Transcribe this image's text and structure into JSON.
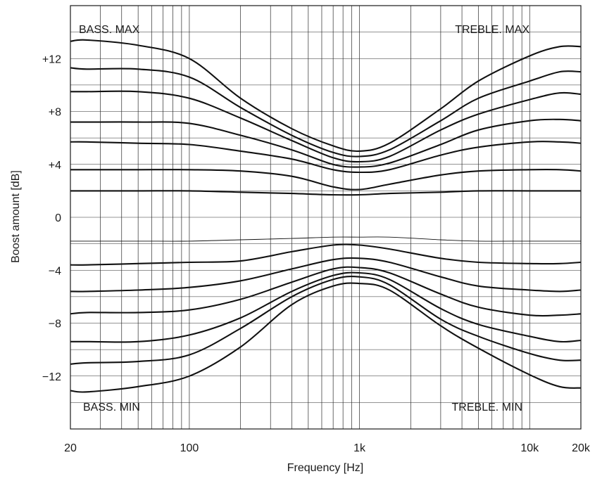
{
  "chart_data": {
    "type": "line",
    "xlabel": "Frequency [Hz]",
    "ylabel": "Boost amount [dB]",
    "x_scale": "log",
    "xlim": [
      20,
      20000
    ],
    "ylim": [
      -16,
      16
    ],
    "grid": true,
    "x_ticks": [
      {
        "value": 20,
        "label": "20"
      },
      {
        "value": 100,
        "label": "100"
      },
      {
        "value": 1000,
        "label": "1k"
      },
      {
        "value": 10000,
        "label": "10k"
      },
      {
        "value": 20000,
        "label": "20k"
      }
    ],
    "y_ticks": [
      {
        "value": 12,
        "label": "+12"
      },
      {
        "value": 8,
        "label": "+8"
      },
      {
        "value": 4,
        "label": "+4"
      },
      {
        "value": 0,
        "label": "0"
      },
      {
        "value": -4,
        "label": "−4"
      },
      {
        "value": -8,
        "label": "−8"
      },
      {
        "value": -12,
        "label": "−12"
      }
    ],
    "annotations": {
      "bass_max": "BASS. MAX",
      "treble_max": "TREBLE. MAX",
      "bass_min": "BASS. MIN",
      "treble_min": "TREBLE. MIN"
    },
    "series": [
      {
        "x": [
          20,
          25,
          50,
          100,
          200,
          400,
          700,
          1000,
          1500,
          3000,
          5000,
          10000,
          15000,
          20000
        ],
        "y": [
          13.3,
          13.4,
          13.0,
          12.0,
          9.0,
          6.7,
          5.4,
          5.0,
          5.6,
          8.2,
          10.3,
          12.2,
          12.9,
          12.9
        ]
      },
      {
        "x": [
          20,
          25,
          50,
          100,
          200,
          400,
          700,
          1000,
          1500,
          3000,
          5000,
          10000,
          15000,
          20000
        ],
        "y": [
          11.3,
          11.2,
          11.2,
          10.6,
          8.3,
          6.2,
          4.9,
          4.6,
          5.1,
          7.3,
          9.0,
          10.3,
          11.0,
          11.0
        ]
      },
      {
        "x": [
          20,
          25,
          50,
          100,
          200,
          400,
          700,
          1000,
          1500,
          3000,
          5000,
          10000,
          15000,
          20000
        ],
        "y": [
          9.5,
          9.5,
          9.5,
          9.0,
          7.5,
          5.8,
          4.5,
          4.2,
          4.6,
          6.6,
          7.8,
          8.9,
          9.4,
          9.3
        ]
      },
      {
        "x": [
          20,
          25,
          50,
          100,
          200,
          400,
          700,
          1000,
          1500,
          3000,
          5000,
          10000,
          15000,
          20000
        ],
        "y": [
          7.2,
          7.2,
          7.2,
          7.1,
          6.2,
          5.1,
          4.0,
          3.8,
          4.1,
          5.5,
          6.6,
          7.3,
          7.4,
          7.3
        ]
      },
      {
        "x": [
          20,
          25,
          50,
          100,
          200,
          400,
          700,
          1000,
          1500,
          3000,
          5000,
          10000,
          15000,
          20000
        ],
        "y": [
          5.7,
          5.7,
          5.6,
          5.5,
          5.0,
          4.4,
          3.6,
          3.4,
          3.6,
          4.7,
          5.3,
          5.7,
          5.7,
          5.6
        ]
      },
      {
        "x": [
          20,
          25,
          50,
          100,
          200,
          400,
          700,
          1000,
          1500,
          3000,
          5000,
          10000,
          15000,
          20000
        ],
        "y": [
          3.6,
          3.6,
          3.6,
          3.6,
          3.5,
          3.1,
          2.3,
          2.1,
          2.5,
          3.2,
          3.5,
          3.6,
          3.6,
          3.5
        ]
      },
      {
        "x": [
          20,
          50,
          100,
          200,
          400,
          700,
          1000,
          1500,
          3000,
          5000,
          10000,
          20000
        ],
        "y": [
          2.0,
          2.0,
          2.0,
          1.9,
          1.8,
          1.7,
          1.7,
          1.8,
          1.9,
          2.0,
          2.0,
          2.0
        ]
      },
      {
        "x": [
          20,
          50,
          100,
          200,
          400,
          700,
          1000,
          1500,
          3000,
          5000,
          10000,
          20000
        ],
        "y": [
          -1.8,
          -1.8,
          -1.8,
          -1.7,
          -1.6,
          -1.5,
          -1.5,
          -1.5,
          -1.7,
          -1.8,
          -1.8,
          -1.8
        ]
      },
      {
        "x": [
          20,
          25,
          50,
          100,
          200,
          400,
          700,
          1000,
          1500,
          3000,
          5000,
          10000,
          15000,
          20000
        ],
        "y": [
          -3.6,
          -3.6,
          -3.5,
          -3.4,
          -3.3,
          -2.6,
          -2.1,
          -2.1,
          -2.4,
          -3.1,
          -3.4,
          -3.5,
          -3.5,
          -3.4
        ]
      },
      {
        "x": [
          20,
          25,
          50,
          100,
          200,
          400,
          700,
          1000,
          1500,
          3000,
          5000,
          10000,
          15000,
          20000
        ],
        "y": [
          -5.6,
          -5.6,
          -5.5,
          -5.3,
          -4.8,
          -3.9,
          -3.2,
          -3.1,
          -3.4,
          -4.5,
          -5.2,
          -5.5,
          -5.6,
          -5.5
        ]
      },
      {
        "x": [
          20,
          25,
          50,
          100,
          200,
          400,
          700,
          1000,
          1500,
          3000,
          5000,
          10000,
          15000,
          20000
        ],
        "y": [
          -7.3,
          -7.2,
          -7.2,
          -7.0,
          -6.2,
          -4.9,
          -3.9,
          -3.8,
          -4.2,
          -5.8,
          -6.8,
          -7.4,
          -7.4,
          -7.3
        ]
      },
      {
        "x": [
          20,
          25,
          50,
          100,
          200,
          400,
          700,
          1000,
          1500,
          3000,
          5000,
          10000,
          15000,
          20000
        ],
        "y": [
          -9.4,
          -9.4,
          -9.4,
          -8.9,
          -7.6,
          -5.6,
          -4.4,
          -4.2,
          -4.7,
          -6.9,
          -8.1,
          -9.0,
          -9.4,
          -9.3
        ]
      },
      {
        "x": [
          20,
          25,
          50,
          100,
          200,
          400,
          700,
          1000,
          1500,
          3000,
          5000,
          10000,
          15000,
          20000
        ],
        "y": [
          -11.1,
          -11.0,
          -10.9,
          -10.4,
          -8.4,
          -6.0,
          -4.7,
          -4.5,
          -5.1,
          -7.7,
          -9.0,
          -10.3,
          -10.8,
          -10.8
        ]
      },
      {
        "x": [
          20,
          25,
          50,
          100,
          200,
          400,
          700,
          1000,
          1500,
          3000,
          5000,
          10000,
          15000,
          20000
        ],
        "y": [
          -13.1,
          -13.2,
          -12.8,
          -12.0,
          -9.8,
          -6.6,
          -5.2,
          -5.0,
          -5.5,
          -8.2,
          -9.9,
          -11.9,
          -12.8,
          -12.9
        ]
      }
    ]
  }
}
